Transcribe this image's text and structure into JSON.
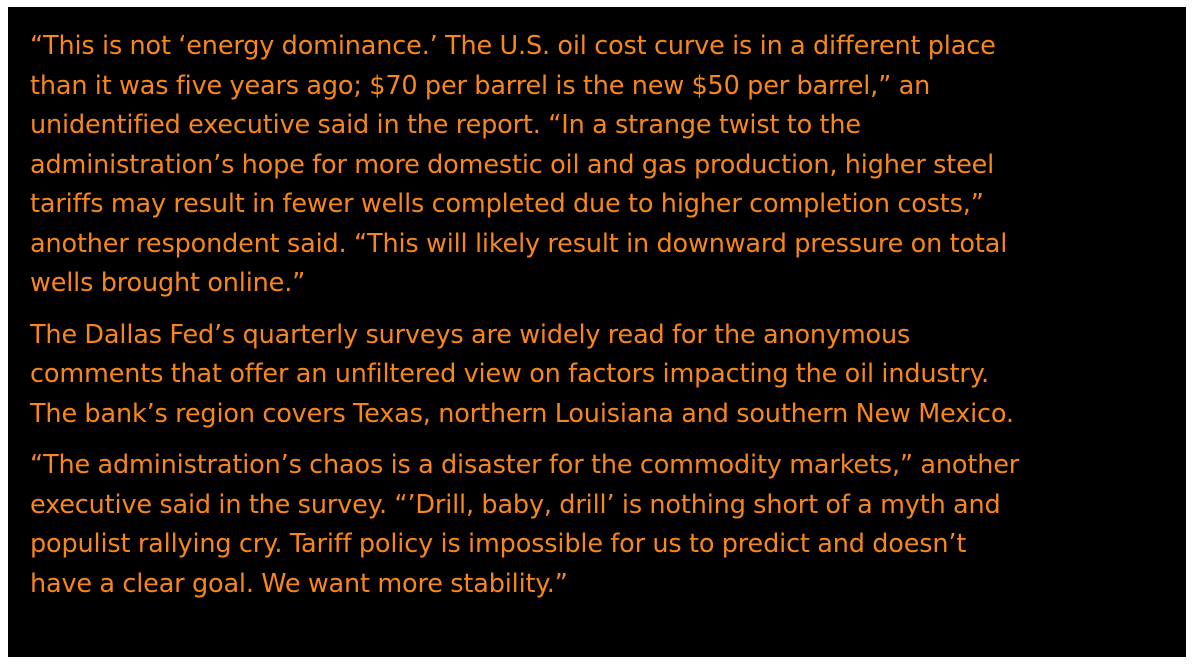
{
  "article": {
    "paragraphs": [
      "“This is not ‘energy dominance.’ The U.S. oil cost curve is in a different place\nthan it was five years ago; $70 per barrel is the new $50 per barrel,” an\nunidentified executive said in the report. “In a strange twist to the\nadministration’s hope for more domestic oil and gas production, higher steel\ntariffs may result in fewer wells completed due to higher completion costs,”\nanother respondent said. “This will likely result in downward pressure on total\nwells brought online.”",
      "The Dallas Fed’s quarterly surveys are widely read for the anonymous\ncomments that offer an unfiltered view on factors impacting the oil industry.\nThe bank’s region covers Texas, northern Louisiana and southern New Mexico.",
      "“The administration’s chaos is a disaster for the commodity markets,” another\nexecutive said in the survey. “’Drill, baby, drill’ is nothing short of a myth and\npopulist rallying cry. Tariff policy is impossible for us to predict and doesn’t\nhave a clear goal. We want more stability.”"
    ]
  },
  "colors": {
    "background": "#000000",
    "text": "#f7861b",
    "border": "#ffffff"
  }
}
